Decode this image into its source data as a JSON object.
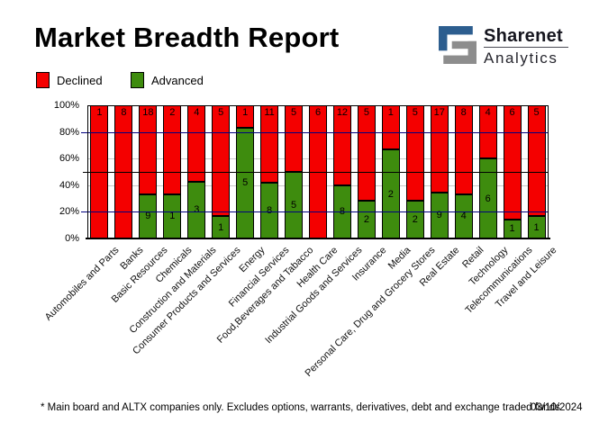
{
  "header": {
    "title": "Market Breadth Report",
    "logo": {
      "line1": "Sharenet",
      "line2": "Analytics",
      "blue": "#2d5e8f",
      "grey": "#8d8d8d"
    }
  },
  "legend": [
    {
      "label": "Declined",
      "color": "#f40000"
    },
    {
      "label": "Advanced",
      "color": "#3e8c0e"
    }
  ],
  "chart_data": {
    "type": "bar",
    "stacked": true,
    "note": "100% stacked columns; numbers on segments are counts of companies",
    "title": "Market Breadth Report",
    "categories": [
      "Automobiles and Parts",
      "Banks",
      "Basic Resources",
      "Chemicals",
      "Construction and Materials",
      "Consumer Products and Services",
      "Energy",
      "Financial Services",
      "Food,Beverages and Tabacco",
      "Health Care",
      "Industrial Goods and Services",
      "Insurance",
      "Media",
      "Personal Care, Drug and Grocery Stores",
      "Real Estate",
      "Retail",
      "Technology",
      "Telecommunications",
      "Travel and Leisure"
    ],
    "series": [
      {
        "name": "Declined",
        "color": "#f40000",
        "values": [
          1,
          8,
          18,
          2,
          4,
          5,
          1,
          11,
          5,
          6,
          12,
          5,
          1,
          5,
          17,
          8,
          4,
          6,
          5
        ]
      },
      {
        "name": "Advanced",
        "color": "#3e8c0e",
        "values": [
          0,
          0,
          9,
          1,
          3,
          1,
          5,
          8,
          5,
          0,
          8,
          2,
          2,
          2,
          9,
          4,
          6,
          1,
          1
        ]
      }
    ],
    "ylim": [
      0,
      100
    ],
    "y_ticks": [
      {
        "label": "100%",
        "value": 100
      },
      {
        "label": "80%",
        "value": 80
      },
      {
        "label": "60%",
        "value": 60
      },
      {
        "label": "40%",
        "value": 40
      },
      {
        "label": "20%",
        "value": 20
      },
      {
        "label": "0%",
        "value": 0
      }
    ],
    "gridlines": {
      "grey": [
        60,
        40
      ],
      "navy": [
        80,
        20
      ],
      "black": [
        50
      ]
    },
    "legend_position": "top-left"
  },
  "footer": {
    "note": "* Main board and ALTX companies only. Excludes options, warrants, derivatives, debt and exchange traded funds",
    "date": "03/10/2024"
  }
}
